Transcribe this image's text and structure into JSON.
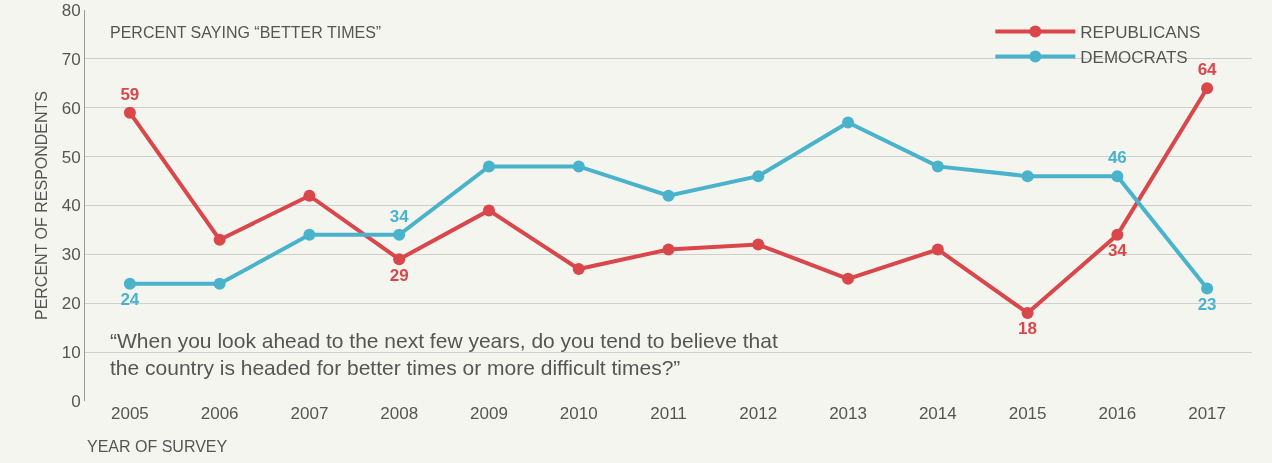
{
  "chart_data": {
    "type": "line",
    "subtitle": "PERCENT SAYING “BETTER TIMES”",
    "xlabel": "YEAR OF SURVEY",
    "ylabel": "PERCENT OF RESPONDENTS",
    "categories": [
      "2005",
      "2006",
      "2007",
      "2008",
      "2009",
      "2010",
      "2011",
      "2012",
      "2013",
      "2014",
      "2015",
      "2016",
      "2017"
    ],
    "series": [
      {
        "name": "REPUBLICANS",
        "color": "#d9474b",
        "values": [
          59,
          33,
          42,
          29,
          39,
          27,
          31,
          32,
          25,
          31,
          18,
          34,
          64
        ],
        "value_labels": [
          "59",
          null,
          null,
          "29",
          null,
          null,
          null,
          null,
          null,
          null,
          "18",
          "34",
          "64"
        ]
      },
      {
        "name": "DEMOCRATS",
        "color": "#4ab3cc",
        "values": [
          24,
          24,
          34,
          34,
          48,
          48,
          42,
          46,
          57,
          48,
          46,
          46,
          23
        ],
        "value_labels": [
          "24",
          null,
          null,
          "34",
          null,
          null,
          null,
          null,
          null,
          null,
          null,
          "46",
          "23"
        ]
      }
    ],
    "annotations": [
      "“When you look ahead to the next few years, do you tend to believe that the country is headed for better times or more difficult times?”"
    ],
    "ylim": [
      0,
      80
    ],
    "yticks": [
      0,
      10,
      20,
      30,
      40,
      50,
      60,
      70,
      80
    ],
    "grid": "y",
    "legend": "top right",
    "marker": "circle",
    "line_style": "solid"
  }
}
